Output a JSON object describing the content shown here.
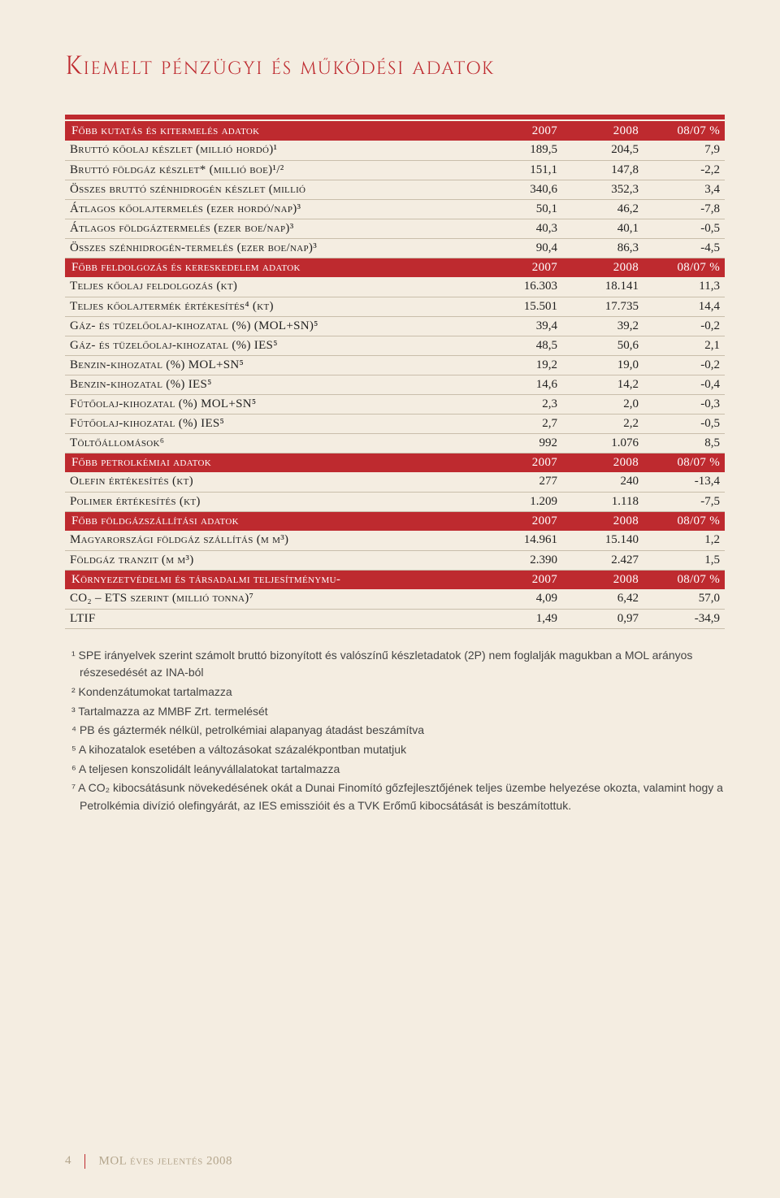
{
  "title": "Kiemelt pénzügyi és működési adatok",
  "colors": {
    "accent": "#be2a2f",
    "paper": "#f4ede1",
    "rule": "#c9beab",
    "footermuted": "#b3a58c"
  },
  "sections": [
    {
      "type": "header",
      "label": "Főbb kutatás és kitermelés adatok",
      "c1": "2007",
      "c2": "2008",
      "c3": "08/07 %"
    },
    {
      "type": "row",
      "label": "Bruttó kőolaj készlet (millió hordó)¹",
      "c1": "189,5",
      "c2": "204,5",
      "c3": "7,9"
    },
    {
      "type": "row",
      "label": "Bruttó földgáz készlet* (millió boe)¹/²",
      "c1": "151,1",
      "c2": "147,8",
      "c3": "-2,2"
    },
    {
      "type": "row",
      "label": "Összes bruttó szénhidrogén készlet (millió",
      "c1": "340,6",
      "c2": "352,3",
      "c3": "3,4"
    },
    {
      "type": "row",
      "label": "Átlagos kőolajtermelés (ezer hordó/nap)³",
      "c1": "50,1",
      "c2": "46,2",
      "c3": "-7,8"
    },
    {
      "type": "row",
      "label": "Átlagos földgáztermelés (ezer boe/nap)³",
      "c1": "40,3",
      "c2": "40,1",
      "c3": "-0,5"
    },
    {
      "type": "row",
      "label": "Összes szénhidrogén-termelés (ezer boe/nap)³",
      "c1": "90,4",
      "c2": "86,3",
      "c3": "-4,5"
    },
    {
      "type": "header",
      "label": "Főbb feldolgozás és kereskedelem adatok",
      "c1": "2007",
      "c2": "2008",
      "c3": "08/07 %"
    },
    {
      "type": "row",
      "label": "Teljes kőolaj feldolgozás  (kt)",
      "c1": "16.303",
      "c2": "18.141",
      "c3": "11,3"
    },
    {
      "type": "row",
      "label": "Teljes kőolajtermék értékesítés⁴  (kt)",
      "c1": "15.501",
      "c2": "17.735",
      "c3": "14,4"
    },
    {
      "type": "row",
      "label": "Gáz- és tüzelőolaj-kihozatal (%)  (MOL+SN)⁵",
      "c1": "39,4",
      "c2": "39,2",
      "c3": "-0,2"
    },
    {
      "type": "row",
      "label": "Gáz- és tüzelőolaj-kihozatal (%)  IES⁵",
      "c1": "48,5",
      "c2": "50,6",
      "c3": "2,1"
    },
    {
      "type": "row",
      "label": "Benzin-kihozatal (%)  MOL+SN⁵",
      "c1": "19,2",
      "c2": "19,0",
      "c3": "-0,2"
    },
    {
      "type": "row",
      "label": "Benzin-kihozatal (%)  IES⁵",
      "c1": "14,6",
      "c2": "14,2",
      "c3": "-0,4"
    },
    {
      "type": "row",
      "label": "Fűtőolaj-kihozatal (%)  MOL+SN⁵",
      "c1": "2,3",
      "c2": "2,0",
      "c3": "-0,3"
    },
    {
      "type": "row",
      "label": "Fűtőolaj-kihozatal (%)  IES⁵",
      "c1": "2,7",
      "c2": "2,2",
      "c3": "-0,5"
    },
    {
      "type": "row",
      "label": "Töltőállomások⁶",
      "c1": "992",
      "c2": "1.076",
      "c3": "8,5"
    },
    {
      "type": "header",
      "label": "Főbb petrolkémiai adatok",
      "c1": "2007",
      "c2": "2008",
      "c3": "08/07 %"
    },
    {
      "type": "row",
      "label": "Olefin értékesítés (kt)",
      "c1": "277",
      "c2": "240",
      "c3": "-13,4"
    },
    {
      "type": "row",
      "label": "Polimer értékesítés (kt)",
      "c1": "1.209",
      "c2": "1.118",
      "c3": "-7,5"
    },
    {
      "type": "header",
      "label": "Főbb földgázszállítási adatok",
      "c1": "2007",
      "c2": "2008",
      "c3": "08/07 %"
    },
    {
      "type": "row",
      "label": "Magyarországi földgáz szállítás (m m³)",
      "c1": "14.961",
      "c2": "15.140",
      "c3": "1,2"
    },
    {
      "type": "row",
      "label": "Földgáz tranzit (m m³)",
      "c1": "2.390",
      "c2": "2.427",
      "c3": "1,5"
    },
    {
      "type": "header",
      "label": "Környezetvédelmi és társadalmi teljesítménymu-",
      "c1": "2007",
      "c2": "2008",
      "c3": "08/07 %"
    },
    {
      "type": "row",
      "label": "CO₂ – ETS szerint (millió tonna)⁷",
      "c1": "4,09",
      "c2": "6,42",
      "c3": "57,0"
    },
    {
      "type": "row",
      "label": "LTIF",
      "c1": "1,49",
      "c2": "0,97",
      "c3": "-34,9"
    }
  ],
  "footnotes": [
    "¹ SPE irányelvek szerint számolt bruttó bizonyított és valószínű készletadatok (2P) nem foglalják magukban a MOL arányos részesedését az INA-ból",
    "² Kondenzátumokat tartalmazza",
    "³ Tartalmazza az MMBF Zrt. termelését",
    "⁴ PB és gáztermék nélkül, petrolkémiai alapanyag átadást beszámítva",
    "⁵ A kihozatalok esetében a változásokat százalékpontban mutatjuk",
    "⁶ A teljesen konszolidált leányvállalatokat tartalmazza",
    "⁷ A CO₂ kibocsátásunk növekedésének okát a Dunai Finomító gőzfejlesztőjének teljes üzembe helyezése okozta, valamint hogy a Petrolkémia divízió olefingyárát, az IES emisszióit és a TVK Erőmű kibocsátását is beszámítottuk."
  ],
  "footer": {
    "page": "4",
    "text": "MOL éves jelentés 2008"
  }
}
